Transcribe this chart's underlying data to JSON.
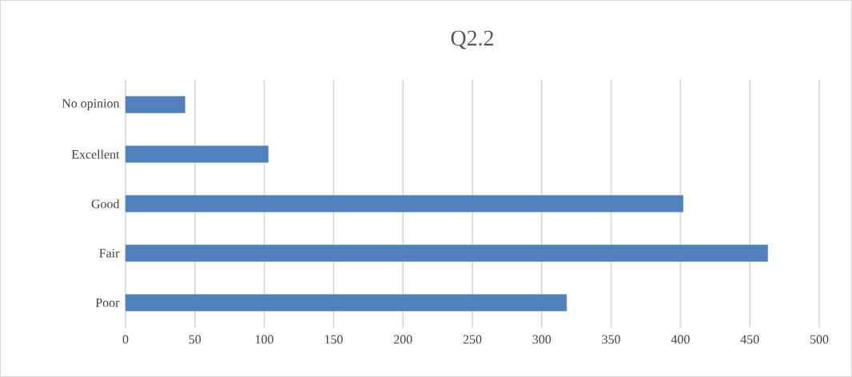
{
  "chart_data": {
    "type": "bar",
    "orientation": "horizontal",
    "title": "Q2.2",
    "categories": [
      "No opinion",
      "Excellent",
      "Good",
      "Fair",
      "Poor"
    ],
    "values": [
      43,
      103,
      402,
      463,
      318
    ],
    "color": "#4f81bd",
    "xlim": [
      0,
      500
    ],
    "xticks": [
      0,
      50,
      100,
      150,
      200,
      250,
      300,
      350,
      400,
      450,
      500
    ],
    "grid": "x"
  }
}
